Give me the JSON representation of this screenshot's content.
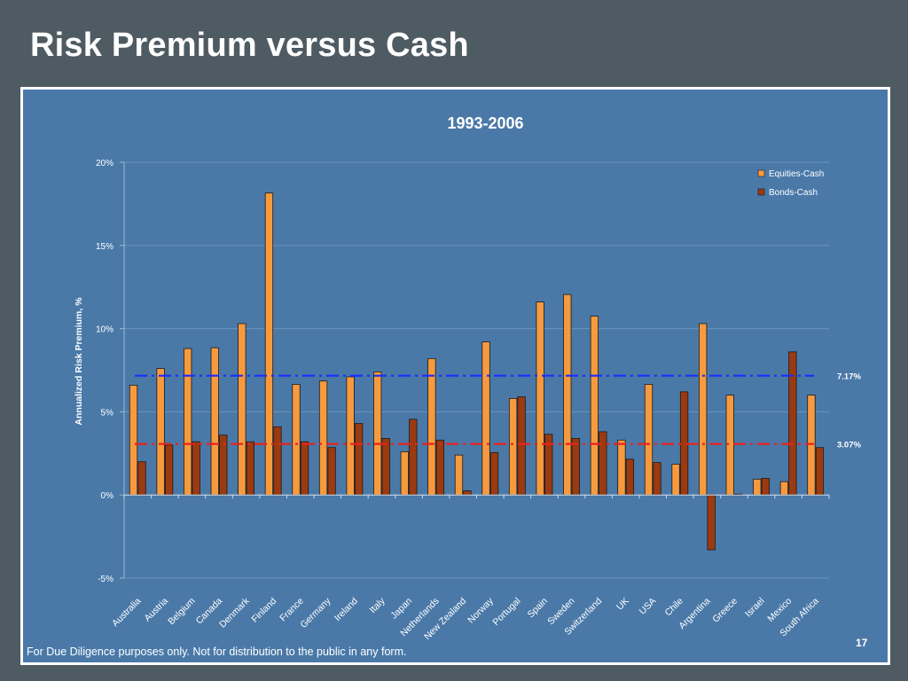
{
  "slide": {
    "title": "Risk Premium versus Cash",
    "footer": "For Due Diligence purposes only. Not for distribution to the public in any form.",
    "page_number": "17"
  },
  "chart_data": {
    "type": "bar",
    "title": "1993-2006",
    "ylabel": "Annualized Risk Premium, %",
    "xlabel": "",
    "ylim": [
      -5,
      20
    ],
    "yticks": [
      20,
      15,
      10,
      5,
      0,
      -5
    ],
    "ytick_labels": [
      "20%",
      "15%",
      "10%",
      "5%",
      "0%",
      "-5%"
    ],
    "legend_position": "top-right",
    "categories": [
      "Australia",
      "Austria",
      "Belgium",
      "Canada",
      "Denmark",
      "Finland",
      "France",
      "Germany",
      "Ireland",
      "Italy",
      "Japan",
      "Netherlands",
      "New Zealand",
      "Norway",
      "Portugal",
      "Spain",
      "Sweden",
      "Switzerland",
      "UK",
      "USA",
      "Chile",
      "Argentina",
      "Greece",
      "Israel",
      "Mexico",
      "South Africa"
    ],
    "series": [
      {
        "name": "Equities-Cash",
        "color": "#f79a3e",
        "values": [
          6.6,
          7.6,
          8.8,
          8.85,
          10.3,
          18.15,
          6.65,
          6.85,
          7.1,
          7.4,
          2.6,
          8.2,
          2.4,
          9.2,
          5.8,
          11.6,
          12.05,
          10.75,
          3.3,
          6.65,
          1.85,
          10.3,
          6.0,
          0.95,
          0.8,
          6.0
        ]
      },
      {
        "name": "Bonds-Cash",
        "color": "#9b3a10",
        "values": [
          2.0,
          3.0,
          3.2,
          3.6,
          3.2,
          4.1,
          3.2,
          2.85,
          4.3,
          3.4,
          4.55,
          3.3,
          0.25,
          2.55,
          5.9,
          3.65,
          3.4,
          3.8,
          2.15,
          1.95,
          6.2,
          -3.3,
          0.05,
          1.0,
          8.6,
          2.85
        ]
      }
    ],
    "reference_lines": [
      {
        "value": 7.17,
        "label": "7.17%",
        "color": "#1a2cff",
        "style": "dash-dot"
      },
      {
        "value": 3.07,
        "label": "3.07%",
        "color": "#e8231e",
        "style": "dash-dot"
      }
    ]
  }
}
